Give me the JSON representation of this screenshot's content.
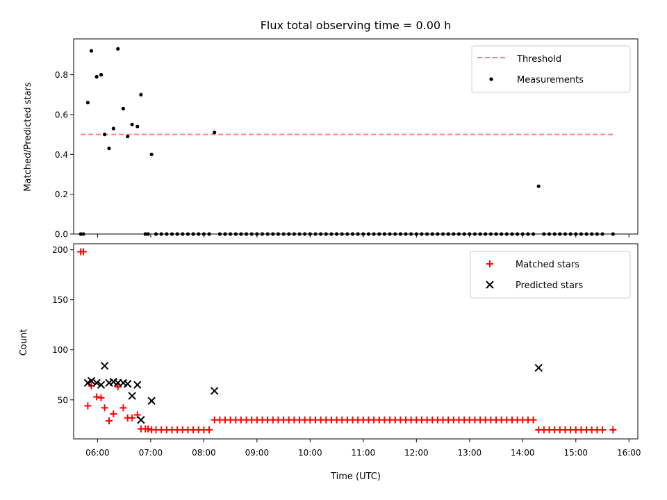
{
  "chart_data": [
    {
      "type": "scatter",
      "title": "Flux total observing time = 0.00 h",
      "xlabel": "",
      "ylabel": "Matched/Predicted stars",
      "xlim": [
        "05:33",
        "16:10"
      ],
      "ylim": [
        0,
        0.98
      ],
      "yticks": [
        0.0,
        0.2,
        0.4,
        0.6,
        0.8
      ],
      "ytick_labels": [
        "0.0",
        "0.2",
        "0.4",
        "0.6",
        "0.8"
      ],
      "legend": {
        "position": "top-right",
        "entries": [
          "Threshold",
          "Measurements"
        ]
      },
      "threshold": {
        "name": "Threshold",
        "value": 0.5,
        "x_range": [
          "05:41",
          "15:42"
        ],
        "color": "#ff7f7f"
      },
      "series": [
        {
          "name": "Measurements",
          "color": "#000000",
          "points": [
            [
              "05:41",
              0
            ],
            [
              "05:44",
              0
            ],
            [
              "05:49",
              0.66
            ],
            [
              "05:53",
              0.92
            ],
            [
              "05:59",
              0.79
            ],
            [
              "06:04",
              0.8
            ],
            [
              "06:08",
              0.5
            ],
            [
              "06:13",
              0.43
            ],
            [
              "06:18",
              0.53
            ],
            [
              "06:23",
              0.93
            ],
            [
              "06:29",
              0.63
            ],
            [
              "06:34",
              0.49
            ],
            [
              "06:39",
              0.55
            ],
            [
              "06:45",
              0.54
            ],
            [
              "06:49",
              0.7
            ],
            [
              "06:54",
              0
            ],
            [
              "06:57",
              0
            ],
            [
              "07:01",
              0.4
            ],
            [
              "07:06",
              0
            ],
            [
              "07:12",
              0
            ],
            [
              "07:18",
              0
            ],
            [
              "07:24",
              0
            ],
            [
              "07:30",
              0
            ],
            [
              "07:36",
              0
            ],
            [
              "07:42",
              0
            ],
            [
              "07:48",
              0
            ],
            [
              "07:54",
              0
            ],
            [
              "08:00",
              0
            ],
            [
              "08:06",
              0
            ],
            [
              "08:12",
              0.51
            ],
            [
              "08:18",
              0
            ],
            [
              "08:24",
              0
            ],
            [
              "08:30",
              0
            ],
            [
              "08:36",
              0
            ],
            [
              "08:42",
              0
            ],
            [
              "08:48",
              0
            ],
            [
              "08:54",
              0
            ],
            [
              "09:00",
              0
            ],
            [
              "09:06",
              0
            ],
            [
              "09:12",
              0
            ],
            [
              "09:18",
              0
            ],
            [
              "09:24",
              0
            ],
            [
              "09:30",
              0
            ],
            [
              "09:36",
              0
            ],
            [
              "09:42",
              0
            ],
            [
              "09:48",
              0
            ],
            [
              "09:54",
              0
            ],
            [
              "10:00",
              0
            ],
            [
              "10:06",
              0
            ],
            [
              "10:12",
              0
            ],
            [
              "10:18",
              0
            ],
            [
              "10:24",
              0
            ],
            [
              "10:30",
              0
            ],
            [
              "10:36",
              0
            ],
            [
              "10:42",
              0
            ],
            [
              "10:48",
              0
            ],
            [
              "10:54",
              0
            ],
            [
              "11:00",
              0
            ],
            [
              "11:06",
              0
            ],
            [
              "11:12",
              0
            ],
            [
              "11:18",
              0
            ],
            [
              "11:24",
              0
            ],
            [
              "11:30",
              0
            ],
            [
              "11:36",
              0
            ],
            [
              "11:42",
              0
            ],
            [
              "11:48",
              0
            ],
            [
              "11:54",
              0
            ],
            [
              "12:00",
              0
            ],
            [
              "12:06",
              0
            ],
            [
              "12:12",
              0
            ],
            [
              "12:18",
              0
            ],
            [
              "12:24",
              0
            ],
            [
              "12:30",
              0
            ],
            [
              "12:36",
              0
            ],
            [
              "12:42",
              0
            ],
            [
              "12:48",
              0
            ],
            [
              "12:54",
              0
            ],
            [
              "13:00",
              0
            ],
            [
              "13:06",
              0
            ],
            [
              "13:12",
              0
            ],
            [
              "13:18",
              0
            ],
            [
              "13:24",
              0
            ],
            [
              "13:30",
              0
            ],
            [
              "13:36",
              0
            ],
            [
              "13:42",
              0
            ],
            [
              "13:48",
              0
            ],
            [
              "13:54",
              0
            ],
            [
              "14:00",
              0
            ],
            [
              "14:06",
              0
            ],
            [
              "14:12",
              0
            ],
            [
              "14:18",
              0.24
            ],
            [
              "14:24",
              0
            ],
            [
              "14:30",
              0
            ],
            [
              "14:36",
              0
            ],
            [
              "14:42",
              0
            ],
            [
              "14:48",
              0
            ],
            [
              "14:54",
              0
            ],
            [
              "15:00",
              0
            ],
            [
              "15:06",
              0
            ],
            [
              "15:12",
              0
            ],
            [
              "15:18",
              0
            ],
            [
              "15:24",
              0
            ],
            [
              "15:30",
              0
            ],
            [
              "15:42",
              0
            ]
          ]
        }
      ]
    },
    {
      "type": "scatter",
      "title": "",
      "xlabel": "Time (UTC)",
      "ylabel": "Count",
      "xlim": [
        "05:33",
        "16:10"
      ],
      "ylim": [
        11,
        206
      ],
      "yticks": [
        50,
        100,
        150,
        200
      ],
      "ytick_labels": [
        "50",
        "100",
        "150",
        "200"
      ],
      "xticks": [
        "06:00",
        "07:00",
        "08:00",
        "09:00",
        "10:00",
        "11:00",
        "12:00",
        "13:00",
        "14:00",
        "15:00",
        "16:00"
      ],
      "legend": {
        "position": "top-right",
        "entries": [
          "Matched stars",
          "Predicted stars"
        ]
      },
      "series": [
        {
          "name": "Matched stars",
          "marker": "+",
          "color": "#ff0000",
          "points": [
            [
              "05:41",
              198
            ],
            [
              "05:44",
              198
            ],
            [
              "05:49",
              44
            ],
            [
              "05:53",
              64
            ],
            [
              "05:59",
              53
            ],
            [
              "06:04",
              52
            ],
            [
              "06:08",
              42
            ],
            [
              "06:13",
              29
            ],
            [
              "06:18",
              36
            ],
            [
              "06:23",
              63
            ],
            [
              "06:29",
              42
            ],
            [
              "06:34",
              32
            ],
            [
              "06:39",
              32
            ],
            [
              "06:45",
              35
            ],
            [
              "06:49",
              21
            ],
            [
              "06:54",
              21
            ],
            [
              "06:57",
              21
            ],
            [
              "07:01",
              20
            ],
            [
              "07:06",
              20
            ],
            [
              "07:12",
              20
            ],
            [
              "07:18",
              20
            ],
            [
              "07:24",
              20
            ],
            [
              "07:30",
              20
            ],
            [
              "07:36",
              20
            ],
            [
              "07:42",
              20
            ],
            [
              "07:48",
              20
            ],
            [
              "07:54",
              20
            ],
            [
              "08:00",
              20
            ],
            [
              "08:06",
              20
            ],
            [
              "08:12",
              30
            ],
            [
              "08:18",
              30
            ],
            [
              "08:24",
              30
            ],
            [
              "08:30",
              30
            ],
            [
              "08:36",
              30
            ],
            [
              "08:42",
              30
            ],
            [
              "08:48",
              30
            ],
            [
              "08:54",
              30
            ],
            [
              "09:00",
              30
            ],
            [
              "09:06",
              30
            ],
            [
              "09:12",
              30
            ],
            [
              "09:18",
              30
            ],
            [
              "09:24",
              30
            ],
            [
              "09:30",
              30
            ],
            [
              "09:36",
              30
            ],
            [
              "09:42",
              30
            ],
            [
              "09:48",
              30
            ],
            [
              "09:54",
              30
            ],
            [
              "10:00",
              30
            ],
            [
              "10:06",
              30
            ],
            [
              "10:12",
              30
            ],
            [
              "10:18",
              30
            ],
            [
              "10:24",
              30
            ],
            [
              "10:30",
              30
            ],
            [
              "10:36",
              30
            ],
            [
              "10:42",
              30
            ],
            [
              "10:48",
              30
            ],
            [
              "10:54",
              30
            ],
            [
              "11:00",
              30
            ],
            [
              "11:06",
              30
            ],
            [
              "11:12",
              30
            ],
            [
              "11:18",
              30
            ],
            [
              "11:24",
              30
            ],
            [
              "11:30",
              30
            ],
            [
              "11:36",
              30
            ],
            [
              "11:42",
              30
            ],
            [
              "11:48",
              30
            ],
            [
              "11:54",
              30
            ],
            [
              "12:00",
              30
            ],
            [
              "12:06",
              30
            ],
            [
              "12:12",
              30
            ],
            [
              "12:18",
              30
            ],
            [
              "12:24",
              30
            ],
            [
              "12:30",
              30
            ],
            [
              "12:36",
              30
            ],
            [
              "12:42",
              30
            ],
            [
              "12:48",
              30
            ],
            [
              "12:54",
              30
            ],
            [
              "13:00",
              30
            ],
            [
              "13:06",
              30
            ],
            [
              "13:12",
              30
            ],
            [
              "13:18",
              30
            ],
            [
              "13:24",
              30
            ],
            [
              "13:30",
              30
            ],
            [
              "13:36",
              30
            ],
            [
              "13:42",
              30
            ],
            [
              "13:48",
              30
            ],
            [
              "13:54",
              30
            ],
            [
              "14:00",
              30
            ],
            [
              "14:06",
              30
            ],
            [
              "14:12",
              30
            ],
            [
              "14:18",
              20
            ],
            [
              "14:24",
              20
            ],
            [
              "14:30",
              20
            ],
            [
              "14:36",
              20
            ],
            [
              "14:42",
              20
            ],
            [
              "14:48",
              20
            ],
            [
              "14:54",
              20
            ],
            [
              "15:00",
              20
            ],
            [
              "15:06",
              20
            ],
            [
              "15:12",
              20
            ],
            [
              "15:18",
              20
            ],
            [
              "15:24",
              20
            ],
            [
              "15:30",
              20
            ],
            [
              "15:42",
              20
            ]
          ]
        },
        {
          "name": "Predicted stars",
          "marker": "x",
          "color": "#000000",
          "points": [
            [
              "05:49",
              67
            ],
            [
              "05:53",
              69
            ],
            [
              "05:59",
              67
            ],
            [
              "06:04",
              65
            ],
            [
              "06:08",
              84
            ],
            [
              "06:13",
              67
            ],
            [
              "06:18",
              68
            ],
            [
              "06:23",
              67
            ],
            [
              "06:29",
              67
            ],
            [
              "06:34",
              66
            ],
            [
              "06:39",
              54
            ],
            [
              "06:45",
              65
            ],
            [
              "06:49",
              30
            ],
            [
              "07:01",
              49
            ],
            [
              "08:12",
              59
            ],
            [
              "14:18",
              82
            ]
          ]
        }
      ]
    }
  ]
}
